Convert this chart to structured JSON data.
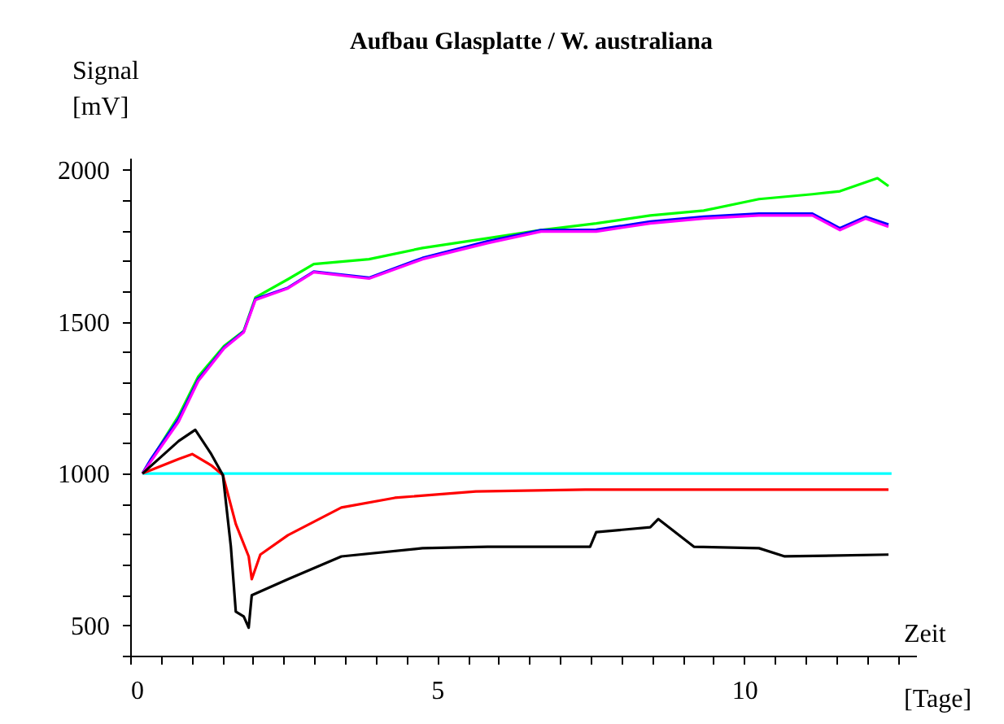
{
  "chart_data": {
    "type": "line",
    "title": "Aufbau Glasplatte / W. australiana",
    "xlabel": "Zeit [Tage]",
    "ylabel": "Signal [mV]",
    "xlim": [
      0,
      12.8
    ],
    "ylim": [
      400,
      2040
    ],
    "xticks": [
      0,
      {
        "value": 0.5,
        "label": null
      },
      {
        "value": 1,
        "label": null
      },
      {
        "value": 1.5,
        "label": null
      },
      {
        "value": 2,
        "label": null
      },
      {
        "value": 2.5,
        "label": null
      },
      {
        "value": 3,
        "label": null
      },
      {
        "value": 3.5,
        "label": null
      },
      {
        "value": 4,
        "label": null
      },
      {
        "value": 4.5,
        "label": null
      },
      5,
      {
        "value": 5.5,
        "label": null
      },
      {
        "value": 6,
        "label": null
      },
      {
        "value": 6.5,
        "label": null
      },
      {
        "value": 7,
        "label": null
      },
      {
        "value": 7.5,
        "label": null
      },
      {
        "value": 8,
        "label": null
      },
      {
        "value": 8.5,
        "label": null
      },
      {
        "value": 9,
        "label": null
      },
      {
        "value": 9.5,
        "label": null
      },
      10,
      {
        "value": 10.5,
        "label": null
      },
      {
        "value": 11,
        "label": null
      },
      {
        "value": 11.5,
        "label": null
      },
      {
        "value": 12,
        "label": null
      },
      {
        "value": 12.5,
        "label": null
      }
    ],
    "yticks": [
      {
        "value": 400,
        "label": null
      },
      500,
      {
        "value": 600,
        "label": null
      },
      {
        "value": 700,
        "label": null
      },
      {
        "value": 800,
        "label": null
      },
      {
        "value": 900,
        "label": null
      },
      1000,
      {
        "value": 1100,
        "label": null
      },
      {
        "value": 1200,
        "label": null
      },
      {
        "value": 1300,
        "label": null
      },
      {
        "value": 1400,
        "label": null
      },
      1500,
      {
        "value": 1600,
        "label": null
      },
      {
        "value": 1700,
        "label": null
      },
      {
        "value": 1800,
        "label": null
      },
      {
        "value": 1900,
        "label": null
      },
      2000
    ],
    "grid": false,
    "marker": "none",
    "line_style": "solid",
    "series": [
      {
        "color": "#00ffff",
        "x": [
          0.2,
          12.4
        ],
        "values": [
          1000,
          1000
        ]
      },
      {
        "color": "#00ff00",
        "x": [
          0.2,
          0.79,
          1.11,
          1.53,
          1.85,
          2.04,
          2.57,
          2.99,
          3.89,
          4.76,
          5.82,
          6.69,
          7.59,
          8.47,
          9.34,
          10.24,
          11.11,
          11.56,
          12.17,
          12.35
        ],
        "values": [
          1000,
          1190,
          1320,
          1420,
          1470,
          1580,
          1640,
          1690,
          1706,
          1743,
          1775,
          1802,
          1824,
          1850,
          1866,
          1904,
          1920,
          1930,
          1973,
          1947
        ]
      },
      {
        "color": "#0000ff",
        "x": [
          0.2,
          0.34,
          0.79,
          1.11,
          1.53,
          1.85,
          2.04,
          2.57,
          2.99,
          3.89,
          4.76,
          5.82,
          6.69,
          7.59,
          8.47,
          9.34,
          10.24,
          11.11,
          11.56,
          11.98,
          12.35
        ],
        "values": [
          1000,
          1048,
          1180,
          1310,
          1415,
          1468,
          1575,
          1612,
          1665,
          1645,
          1710,
          1765,
          1802,
          1803,
          1830,
          1846,
          1856,
          1856,
          1808,
          1846,
          1820
        ]
      },
      {
        "color": "#ff00ff",
        "x": [
          0.2,
          0.79,
          1.11,
          1.53,
          1.85,
          2.04,
          2.57,
          2.99,
          3.89,
          4.76,
          5.82,
          6.69,
          7.59,
          8.47,
          9.34,
          10.24,
          11.11,
          11.56,
          11.98,
          12.35
        ],
        "values": [
          1000,
          1171,
          1305,
          1412,
          1465,
          1572,
          1610,
          1663,
          1642,
          1706,
          1759,
          1797,
          1797,
          1824,
          1840,
          1850,
          1850,
          1802,
          1840,
          1813
        ]
      },
      {
        "color": "#ff0000",
        "x": [
          0.2,
          0.79,
          1.01,
          1.32,
          1.51,
          1.72,
          1.93,
          1.98,
          2.12,
          2.57,
          3.44,
          4.31,
          5.63,
          7.41,
          9.0,
          10.5,
          12.35
        ],
        "values": [
          1000,
          1048,
          1064,
          1027,
          995,
          834,
          727,
          652,
          733,
          797,
          888,
          920,
          941,
          947,
          947,
          947,
          947
        ]
      },
      {
        "color": "#000000",
        "x": [
          0.2,
          0.79,
          1.06,
          1.32,
          1.51,
          1.64,
          1.72,
          1.85,
          1.93,
          1.98,
          2.57,
          3.44,
          4.76,
          5.82,
          7.49,
          7.59,
          8.47,
          8.6,
          9.18,
          10.24,
          10.66,
          12.35
        ],
        "values": [
          1000,
          1107,
          1144,
          1064,
          995,
          759,
          545,
          529,
          492,
          599,
          652,
          727,
          754,
          759,
          759,
          807,
          823,
          850,
          759,
          754,
          727,
          733
        ]
      }
    ]
  }
}
